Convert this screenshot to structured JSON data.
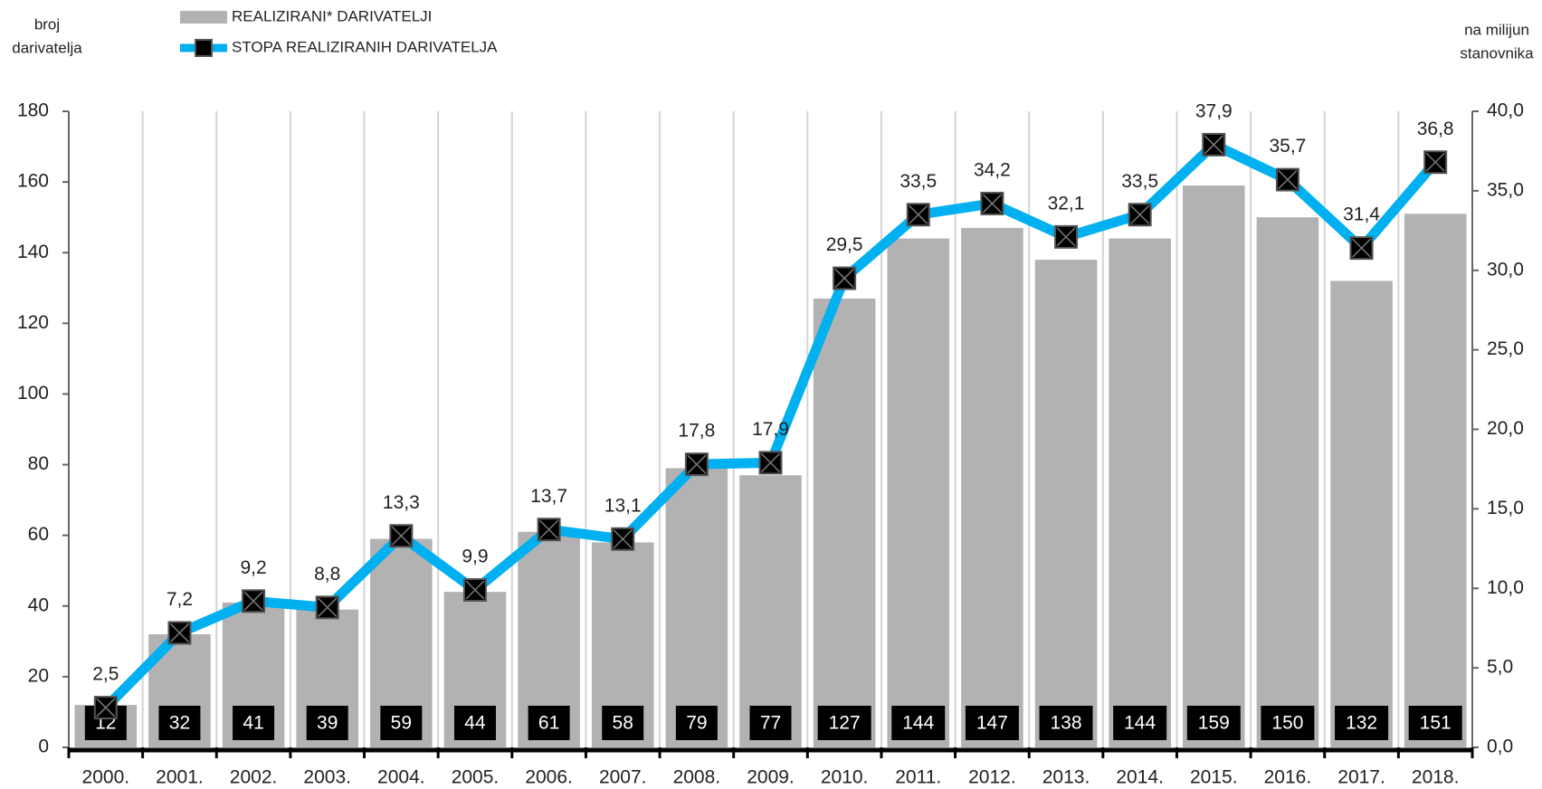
{
  "chart_data": {
    "type": "bar",
    "y_label": [
      "broj",
      "darivatelja"
    ],
    "y2_label": [
      "na milijun",
      "stanovnika"
    ],
    "categories": [
      "2000.",
      "2001.",
      "2002.",
      "2003.",
      "2004.",
      "2005.",
      "2006.",
      "2007.",
      "2008.",
      "2009.",
      "2010.",
      "2011.",
      "2012.",
      "2013.",
      "2014.",
      "2015.",
      "2016.",
      "2017.",
      "2018."
    ],
    "series": [
      {
        "name": "REALIZIRANI* DARIVATELJI",
        "type": "bar",
        "color": "#b2b2b2",
        "values": [
          12,
          32,
          41,
          39,
          59,
          44,
          61,
          58,
          79,
          77,
          127,
          144,
          147,
          138,
          144,
          159,
          150,
          132,
          151
        ]
      },
      {
        "name": "STOPA REALIZIRANIH DARIVATELJA",
        "type": "line",
        "axis": "y2",
        "color": "#00b0f0",
        "values": [
          2.5,
          7.2,
          9.2,
          8.8,
          13.3,
          9.9,
          13.7,
          13.1,
          17.8,
          17.9,
          29.5,
          33.5,
          34.2,
          32.1,
          33.5,
          37.9,
          35.7,
          31.4,
          36.8
        ],
        "value_labels": [
          "2,5",
          "7,2",
          "9,2",
          "8,8",
          "13,3",
          "9,9",
          "13,7",
          "13,1",
          "17,8",
          "17,9",
          "29,5",
          "33,5",
          "34,2",
          "32,1",
          "33,5",
          "37,9",
          "35,7",
          "31,4",
          "36,8"
        ]
      }
    ],
    "ylim": [
      0,
      180
    ],
    "yticks": [
      0,
      20,
      40,
      60,
      80,
      100,
      120,
      140,
      160,
      180
    ],
    "y2lim": [
      0,
      40
    ],
    "y2ticks": [
      {
        "value": 0,
        "label": "0,0"
      },
      {
        "value": 5,
        "label": "5,0"
      },
      {
        "value": 10,
        "label": "10,0"
      },
      {
        "value": 15,
        "label": "15,0"
      },
      {
        "value": 20,
        "label": "20,0"
      },
      {
        "value": 25,
        "label": "25,0"
      },
      {
        "value": 30,
        "label": "30,0"
      },
      {
        "value": 35,
        "label": "35,0"
      },
      {
        "value": 40,
        "label": "40,0"
      }
    ],
    "grid": "x"
  }
}
